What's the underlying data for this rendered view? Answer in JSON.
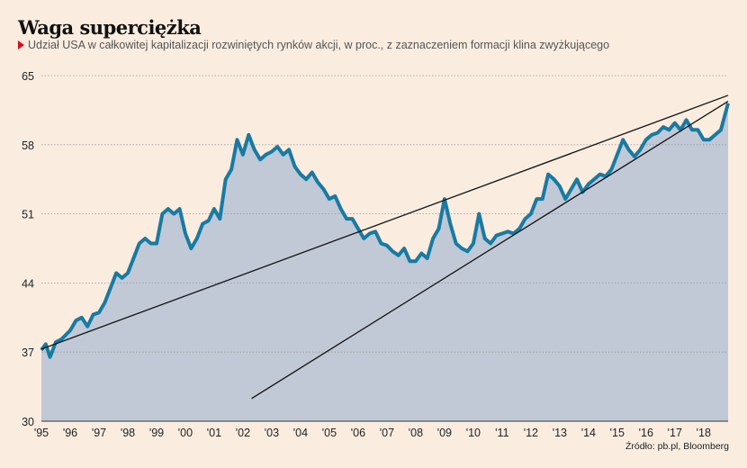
{
  "header": {
    "title": "Waga superciężka",
    "subtitle": "Udział USA w całkowitej kapitalizacji rozwiniętych rynków akcji, w proc., z zaznaczeniem formacji klina zwyżkującego"
  },
  "source": "Źródło: pb.pl, Bloomberg",
  "colors": {
    "background": "#faede0",
    "area": "#c1c8d6",
    "line": "#177ba3",
    "wedge": "#111111",
    "marker": "#d8101a"
  },
  "chart_data": {
    "type": "area",
    "title": "Waga superciężka",
    "xlabel": "",
    "ylabel": "",
    "ylim": [
      30,
      65
    ],
    "xlim": [
      1995,
      2018.85
    ],
    "yticks": [
      "30",
      "37",
      "44",
      "51",
      "58",
      "65"
    ],
    "ytick_values": [
      30,
      37,
      44,
      51,
      58,
      65
    ],
    "xticks": [
      "'95",
      "'96",
      "'97",
      "'98",
      "'99",
      "'00",
      "'01",
      "'02",
      "'03",
      "'04",
      "'05",
      "'06",
      "'07",
      "'08",
      "'09",
      "'10",
      "'11",
      "'12",
      "'13",
      "'14",
      "'15",
      "'16",
      "'17",
      "'18"
    ],
    "xtick_values": [
      1995,
      1996,
      1997,
      1998,
      1999,
      2000,
      2001,
      2002,
      2003,
      2004,
      2005,
      2006,
      2007,
      2008,
      2009,
      2010,
      2011,
      2012,
      2013,
      2014,
      2015,
      2016,
      2017,
      2018
    ],
    "grid": true,
    "series": [
      {
        "name": "Udział USA",
        "x": [
          1995.0,
          1995.15,
          1995.3,
          1995.5,
          1995.7,
          1996.0,
          1996.2,
          1996.4,
          1996.6,
          1996.8,
          1997.0,
          1997.2,
          1997.4,
          1997.6,
          1997.8,
          1998.0,
          1998.2,
          1998.4,
          1998.6,
          1998.8,
          1999.0,
          1999.2,
          1999.4,
          1999.6,
          1999.8,
          2000.0,
          2000.2,
          2000.4,
          2000.6,
          2000.8,
          2001.0,
          2001.2,
          2001.4,
          2001.6,
          2001.8,
          2002.0,
          2002.2,
          2002.4,
          2002.6,
          2002.8,
          2003.0,
          2003.2,
          2003.4,
          2003.6,
          2003.8,
          2004.0,
          2004.2,
          2004.4,
          2004.6,
          2004.8,
          2005.0,
          2005.2,
          2005.4,
          2005.6,
          2005.8,
          2006.0,
          2006.2,
          2006.4,
          2006.6,
          2006.8,
          2007.0,
          2007.2,
          2007.4,
          2007.6,
          2007.8,
          2008.0,
          2008.2,
          2008.4,
          2008.6,
          2008.8,
          2009.0,
          2009.2,
          2009.4,
          2009.6,
          2009.8,
          2010.0,
          2010.2,
          2010.4,
          2010.6,
          2010.8,
          2011.0,
          2011.2,
          2011.4,
          2011.6,
          2011.8,
          2012.0,
          2012.2,
          2012.4,
          2012.6,
          2012.8,
          2013.0,
          2013.2,
          2013.4,
          2013.6,
          2013.8,
          2014.0,
          2014.2,
          2014.4,
          2014.6,
          2014.8,
          2015.0,
          2015.2,
          2015.4,
          2015.6,
          2015.8,
          2016.0,
          2016.2,
          2016.4,
          2016.6,
          2016.8,
          2017.0,
          2017.2,
          2017.4,
          2017.6,
          2017.8,
          2018.0,
          2018.2,
          2018.4,
          2018.6,
          2018.85
        ],
        "values": [
          37.2,
          37.8,
          36.5,
          38.0,
          38.3,
          39.2,
          40.2,
          40.5,
          39.6,
          40.8,
          41.0,
          42.0,
          43.5,
          45.0,
          44.5,
          45.0,
          46.5,
          48.0,
          48.5,
          48.0,
          48.0,
          51.0,
          51.5,
          51.0,
          51.5,
          49.0,
          47.5,
          48.5,
          50.0,
          50.3,
          51.5,
          50.5,
          54.5,
          55.5,
          58.5,
          57.0,
          59.0,
          57.5,
          56.5,
          57.0,
          57.3,
          57.8,
          57.0,
          57.5,
          55.8,
          55.0,
          54.5,
          55.2,
          54.2,
          53.5,
          52.5,
          52.8,
          51.5,
          50.5,
          50.5,
          49.5,
          48.5,
          49.0,
          49.2,
          48.0,
          47.8,
          47.2,
          46.8,
          47.5,
          46.2,
          46.2,
          47.0,
          46.5,
          48.5,
          49.5,
          52.5,
          50.0,
          48.0,
          47.5,
          47.2,
          48.0,
          51.0,
          48.5,
          48.0,
          48.8,
          49.0,
          49.2,
          49.0,
          49.5,
          50.5,
          51.0,
          52.5,
          52.5,
          55.0,
          54.5,
          53.8,
          52.5,
          53.5,
          54.5,
          53.2,
          54.0,
          54.5,
          55.0,
          54.8,
          55.5,
          57.0,
          58.5,
          57.5,
          56.8,
          57.5,
          58.5,
          59.0,
          59.2,
          59.8,
          59.5,
          60.2,
          59.5,
          60.5,
          59.5,
          59.5,
          58.5,
          58.5,
          59.0,
          59.5,
          62.2
        ]
      }
    ],
    "wedge_lines": [
      {
        "name": "upper-trendline",
        "from": [
          1995.0,
          37.3
        ],
        "to": [
          2018.85,
          63.0
        ]
      },
      {
        "name": "lower-trendline",
        "from": [
          2002.3,
          32.3
        ],
        "to": [
          2018.85,
          62.4
        ]
      }
    ]
  }
}
